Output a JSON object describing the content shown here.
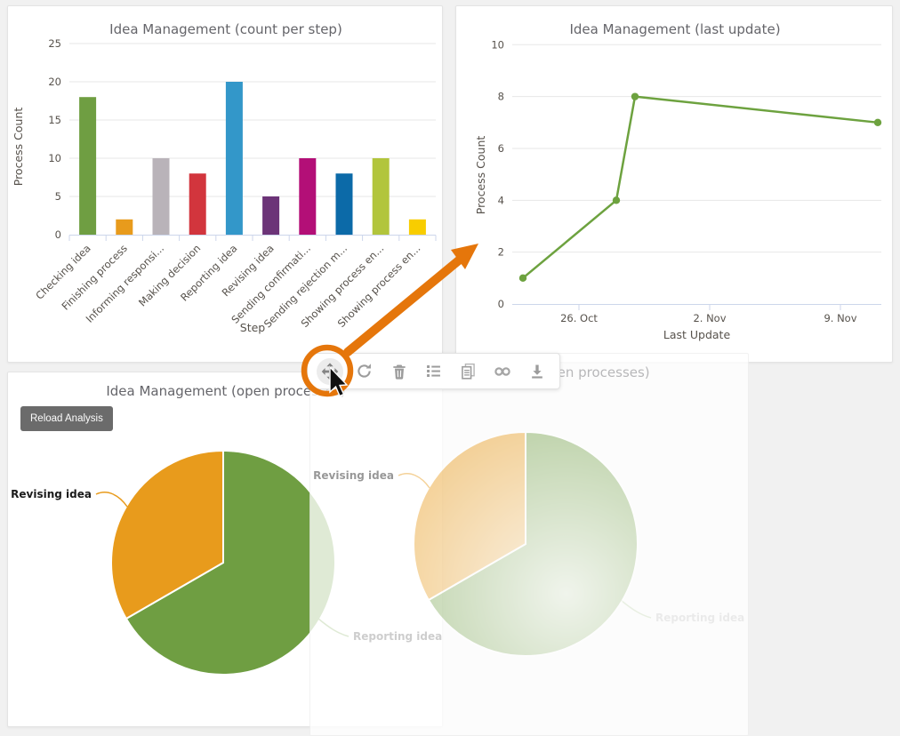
{
  "panels": {
    "bar": {
      "title": "Idea Management (count per step)"
    },
    "line": {
      "title": "Idea Management (last update)"
    },
    "pie": {
      "title": "Idea Management (open processes)",
      "reload_button": "Reload Analysis"
    },
    "ghost": {
      "title": "Idea Management (open processes)"
    }
  },
  "toolbar": {
    "icons": [
      "move",
      "reload",
      "delete",
      "list",
      "report",
      "link",
      "download"
    ],
    "active_icon": "move"
  },
  "annotations": {
    "highlight_color": "#e5760b",
    "highlighted_tool": "move"
  },
  "chart_data": [
    {
      "id": "count-per-step",
      "type": "bar",
      "title": "Idea Management (count per step)",
      "xlabel": "Step",
      "ylabel": "Process Count",
      "ylim": [
        0,
        25
      ],
      "yticks": [
        0,
        5,
        10,
        15,
        20,
        25
      ],
      "grid": true,
      "categories": [
        "Checking idea",
        "Finishing process",
        "Informing responsi...",
        "Making decision",
        "Reporting idea",
        "Revising idea",
        "Sending confirmati...",
        "Sending rejection m...",
        "Showing process en...",
        "Showing process en..."
      ],
      "values": [
        18,
        2,
        10,
        8,
        20,
        5,
        10,
        8,
        10,
        2
      ],
      "colors": [
        "#6f9e42",
        "#e89b1c",
        "#b9b3b9",
        "#d2353d",
        "#3397c9",
        "#6c3478",
        "#b30f77",
        "#0c6aa8",
        "#b2c53c",
        "#f8cd00"
      ]
    },
    {
      "id": "last-update",
      "type": "line",
      "title": "Idea Management (last update)",
      "xlabel": "Last Update",
      "ylabel": "Process Count",
      "ylim": [
        0,
        10
      ],
      "yticks": [
        0,
        2,
        4,
        6,
        8,
        10
      ],
      "grid": true,
      "color": "#6da23f",
      "xlim_days": [
        -3.6,
        16.4
      ],
      "xticks": [
        {
          "day": 0,
          "label": "26. Oct"
        },
        {
          "day": 7,
          "label": "2. Nov"
        },
        {
          "day": 14,
          "label": "9. Nov"
        }
      ],
      "points": [
        {
          "day": -3,
          "value": 1
        },
        {
          "day": 2,
          "value": 4
        },
        {
          "day": 3,
          "value": 8
        },
        {
          "day": 16,
          "value": 7
        }
      ]
    },
    {
      "id": "open-processes",
      "type": "pie",
      "title": "Idea Management (open processes)",
      "slices": [
        {
          "label": "Reporting idea",
          "percent": 66.7,
          "start_deg": 0,
          "end_deg": 240,
          "color": "#6f9e42"
        },
        {
          "label": "Revising idea",
          "percent": 33.3,
          "start_deg": 240,
          "end_deg": 360,
          "color": "#e89b1c"
        }
      ]
    }
  ]
}
